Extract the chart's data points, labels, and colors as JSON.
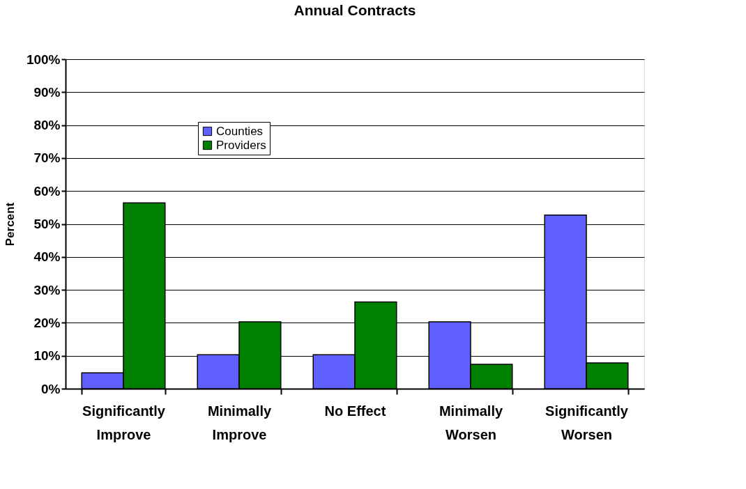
{
  "chart_data": {
    "type": "bar",
    "title": "Annual Contracts",
    "ylabel": "Percent",
    "categories": [
      "Significantly\nImprove",
      "Minimally\nImprove",
      "No Effect",
      "Minimally\nWorsen",
      "Significantly\nWorsen"
    ],
    "series": [
      {
        "name": "Counties",
        "color": "#6060ff",
        "values": [
          4.8,
          10.3,
          10.3,
          20.3,
          52.7
        ]
      },
      {
        "name": "Providers",
        "color": "#008000",
        "values": [
          56.4,
          20.3,
          26.3,
          7.4,
          7.8
        ]
      }
    ],
    "ylim": [
      0,
      100
    ],
    "yticks": [
      {
        "value": 0,
        "label": "0%"
      },
      {
        "value": 10,
        "label": "10%"
      },
      {
        "value": 20,
        "label": "20%"
      },
      {
        "value": 30,
        "label": "30%"
      },
      {
        "value": 40,
        "label": "40%"
      },
      {
        "value": 50,
        "label": "50%"
      },
      {
        "value": 60,
        "label": "60%"
      },
      {
        "value": 70,
        "label": "70%"
      },
      {
        "value": 80,
        "label": "80%"
      },
      {
        "value": 90,
        "label": "90%"
      },
      {
        "value": 100,
        "label": "100%"
      }
    ],
    "grid": "y",
    "legend": "top left"
  }
}
